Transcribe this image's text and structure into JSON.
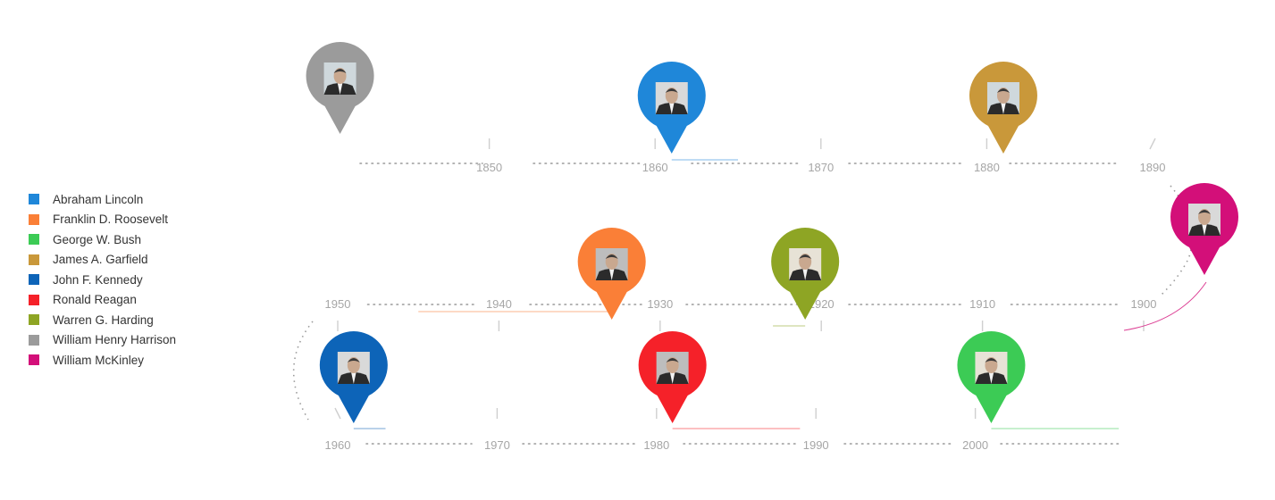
{
  "chart_data": {
    "type": "timeline",
    "year_labels": [
      "1850",
      "1860",
      "1870",
      "1880",
      "1890",
      "1900",
      "1910",
      "1920",
      "1930",
      "1940",
      "1950",
      "1960",
      "1970",
      "1980",
      "1990",
      "2000"
    ],
    "series": [
      {
        "name": "Abraham Lincoln",
        "color": "#1f87d9",
        "start": 1861,
        "end": 1865
      },
      {
        "name": "Franklin D. Roosevelt",
        "color": "#fa7f37",
        "start": 1933,
        "end": 1945
      },
      {
        "name": "George W. Bush",
        "color": "#3ccb55",
        "start": 2001,
        "end": 2009
      },
      {
        "name": "James A. Garfield",
        "color": "#c9983a",
        "start": 1881,
        "end": 1881
      },
      {
        "name": "John F. Kennedy",
        "color": "#0d64b8",
        "start": 1961,
        "end": 1963
      },
      {
        "name": "Ronald Reagan",
        "color": "#f52129",
        "start": 1981,
        "end": 1989
      },
      {
        "name": "Warren G. Harding",
        "color": "#8ea524",
        "start": 1921,
        "end": 1923
      },
      {
        "name": "William Henry Harrison",
        "color": "#9b9b9b",
        "start": 1841,
        "end": 1841
      },
      {
        "name": "William McKinley",
        "color": "#d30f79",
        "start": 1897,
        "end": 1901
      }
    ]
  }
}
